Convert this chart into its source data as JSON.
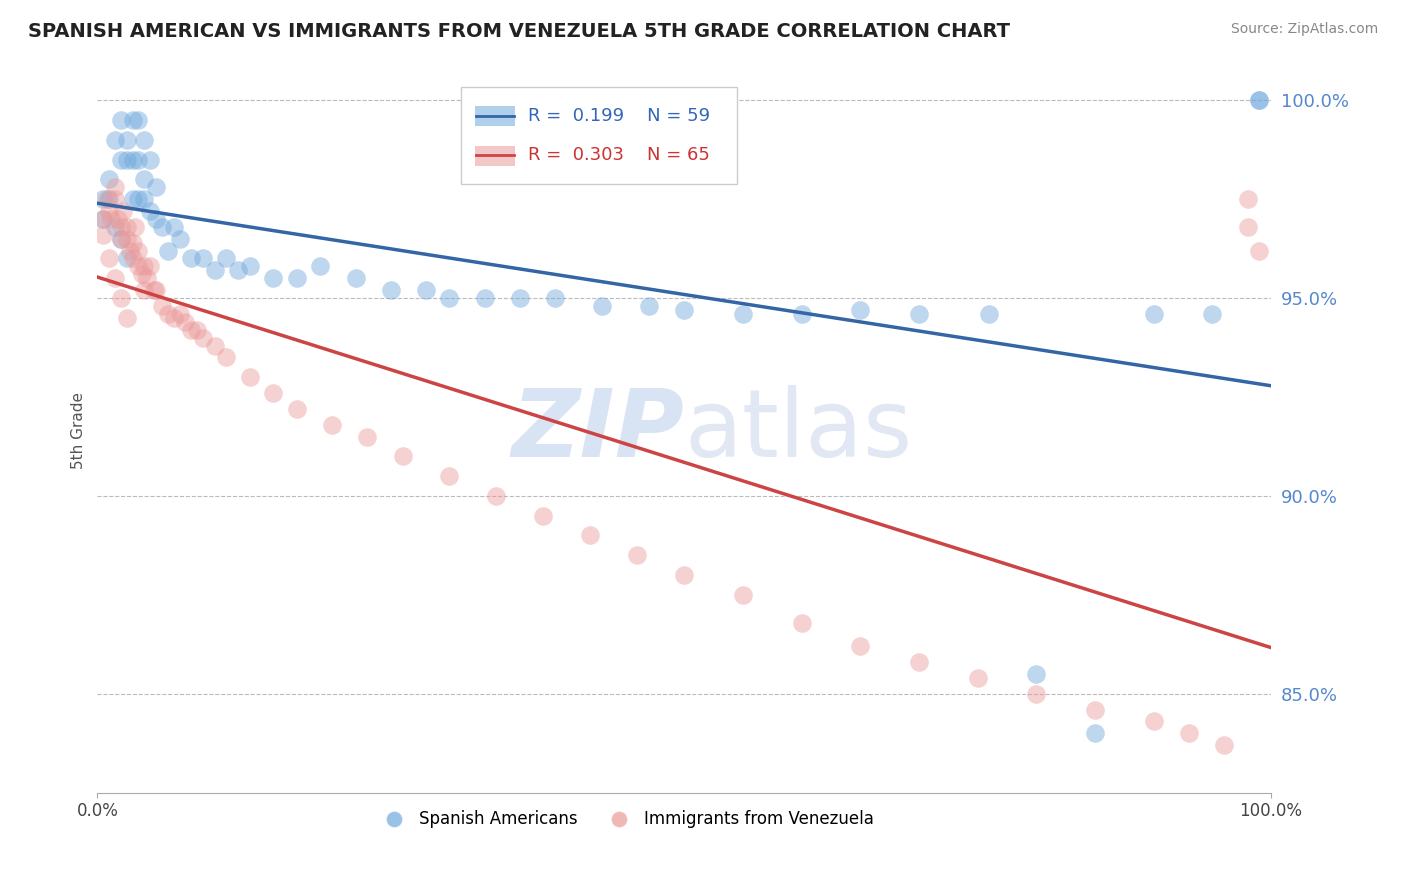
{
  "title": "SPANISH AMERICAN VS IMMIGRANTS FROM VENEZUELA 5TH GRADE CORRELATION CHART",
  "source_text": "Source: ZipAtlas.com",
  "ylabel": "5th Grade",
  "xlim": [
    0.0,
    1.0
  ],
  "ylim": [
    0.825,
    1.008
  ],
  "yticks": [
    0.85,
    0.9,
    0.95,
    1.0
  ],
  "ytick_labels": [
    "85.0%",
    "90.0%",
    "95.0%",
    "100.0%"
  ],
  "xticks": [
    0.0,
    1.0
  ],
  "xtick_labels": [
    "0.0%",
    "100.0%"
  ],
  "blue_label": "Spanish Americans",
  "pink_label": "Immigrants from Venezuela",
  "blue_color": "#6fa8dc",
  "pink_color": "#ea9999",
  "blue_R": 0.199,
  "blue_N": 59,
  "pink_R": 0.303,
  "pink_N": 65,
  "blue_line_color": "#3465a4",
  "pink_line_color": "#cc4444",
  "background_color": "#ffffff",
  "grid_color": "#bbbbbb",
  "watermark_color": "#c8d8f0",
  "blue_scatter_x": [
    0.005,
    0.01,
    0.015,
    0.02,
    0.02,
    0.025,
    0.025,
    0.03,
    0.03,
    0.03,
    0.035,
    0.035,
    0.035,
    0.04,
    0.04,
    0.04,
    0.045,
    0.045,
    0.05,
    0.05,
    0.055,
    0.06,
    0.065,
    0.07,
    0.08,
    0.09,
    0.1,
    0.11,
    0.12,
    0.13,
    0.15,
    0.17,
    0.19,
    0.22,
    0.25,
    0.28,
    0.3,
    0.33,
    0.36,
    0.39,
    0.43,
    0.47,
    0.5,
    0.55,
    0.6,
    0.65,
    0.7,
    0.76,
    0.8,
    0.85,
    0.9,
    0.95,
    0.99,
    0.005,
    0.01,
    0.015,
    0.02,
    0.025,
    0.99
  ],
  "blue_scatter_y": [
    0.975,
    0.98,
    0.99,
    0.985,
    0.995,
    0.985,
    0.99,
    0.975,
    0.985,
    0.995,
    0.975,
    0.985,
    0.995,
    0.975,
    0.98,
    0.99,
    0.972,
    0.985,
    0.97,
    0.978,
    0.968,
    0.962,
    0.968,
    0.965,
    0.96,
    0.96,
    0.957,
    0.96,
    0.957,
    0.958,
    0.955,
    0.955,
    0.958,
    0.955,
    0.952,
    0.952,
    0.95,
    0.95,
    0.95,
    0.95,
    0.948,
    0.948,
    0.947,
    0.946,
    0.946,
    0.947,
    0.946,
    0.946,
    0.855,
    0.84,
    0.946,
    0.946,
    1.0,
    0.97,
    0.975,
    0.968,
    0.965,
    0.96,
    1.0
  ],
  "pink_scatter_x": [
    0.005,
    0.008,
    0.01,
    0.012,
    0.015,
    0.015,
    0.018,
    0.02,
    0.02,
    0.022,
    0.025,
    0.025,
    0.028,
    0.03,
    0.03,
    0.032,
    0.035,
    0.035,
    0.038,
    0.04,
    0.04,
    0.042,
    0.045,
    0.048,
    0.05,
    0.055,
    0.06,
    0.065,
    0.07,
    0.075,
    0.08,
    0.085,
    0.09,
    0.1,
    0.11,
    0.13,
    0.15,
    0.17,
    0.2,
    0.23,
    0.26,
    0.3,
    0.34,
    0.38,
    0.42,
    0.46,
    0.5,
    0.55,
    0.6,
    0.65,
    0.7,
    0.75,
    0.8,
    0.85,
    0.9,
    0.93,
    0.96,
    0.005,
    0.01,
    0.015,
    0.02,
    0.025,
    0.98,
    0.98,
    0.99
  ],
  "pink_scatter_y": [
    0.97,
    0.975,
    0.972,
    0.97,
    0.975,
    0.978,
    0.97,
    0.965,
    0.968,
    0.972,
    0.965,
    0.968,
    0.962,
    0.96,
    0.964,
    0.968,
    0.958,
    0.962,
    0.956,
    0.952,
    0.958,
    0.955,
    0.958,
    0.952,
    0.952,
    0.948,
    0.946,
    0.945,
    0.946,
    0.944,
    0.942,
    0.942,
    0.94,
    0.938,
    0.935,
    0.93,
    0.926,
    0.922,
    0.918,
    0.915,
    0.91,
    0.905,
    0.9,
    0.895,
    0.89,
    0.885,
    0.88,
    0.875,
    0.868,
    0.862,
    0.858,
    0.854,
    0.85,
    0.846,
    0.843,
    0.84,
    0.837,
    0.966,
    0.96,
    0.955,
    0.95,
    0.945,
    0.968,
    0.975,
    0.962
  ]
}
